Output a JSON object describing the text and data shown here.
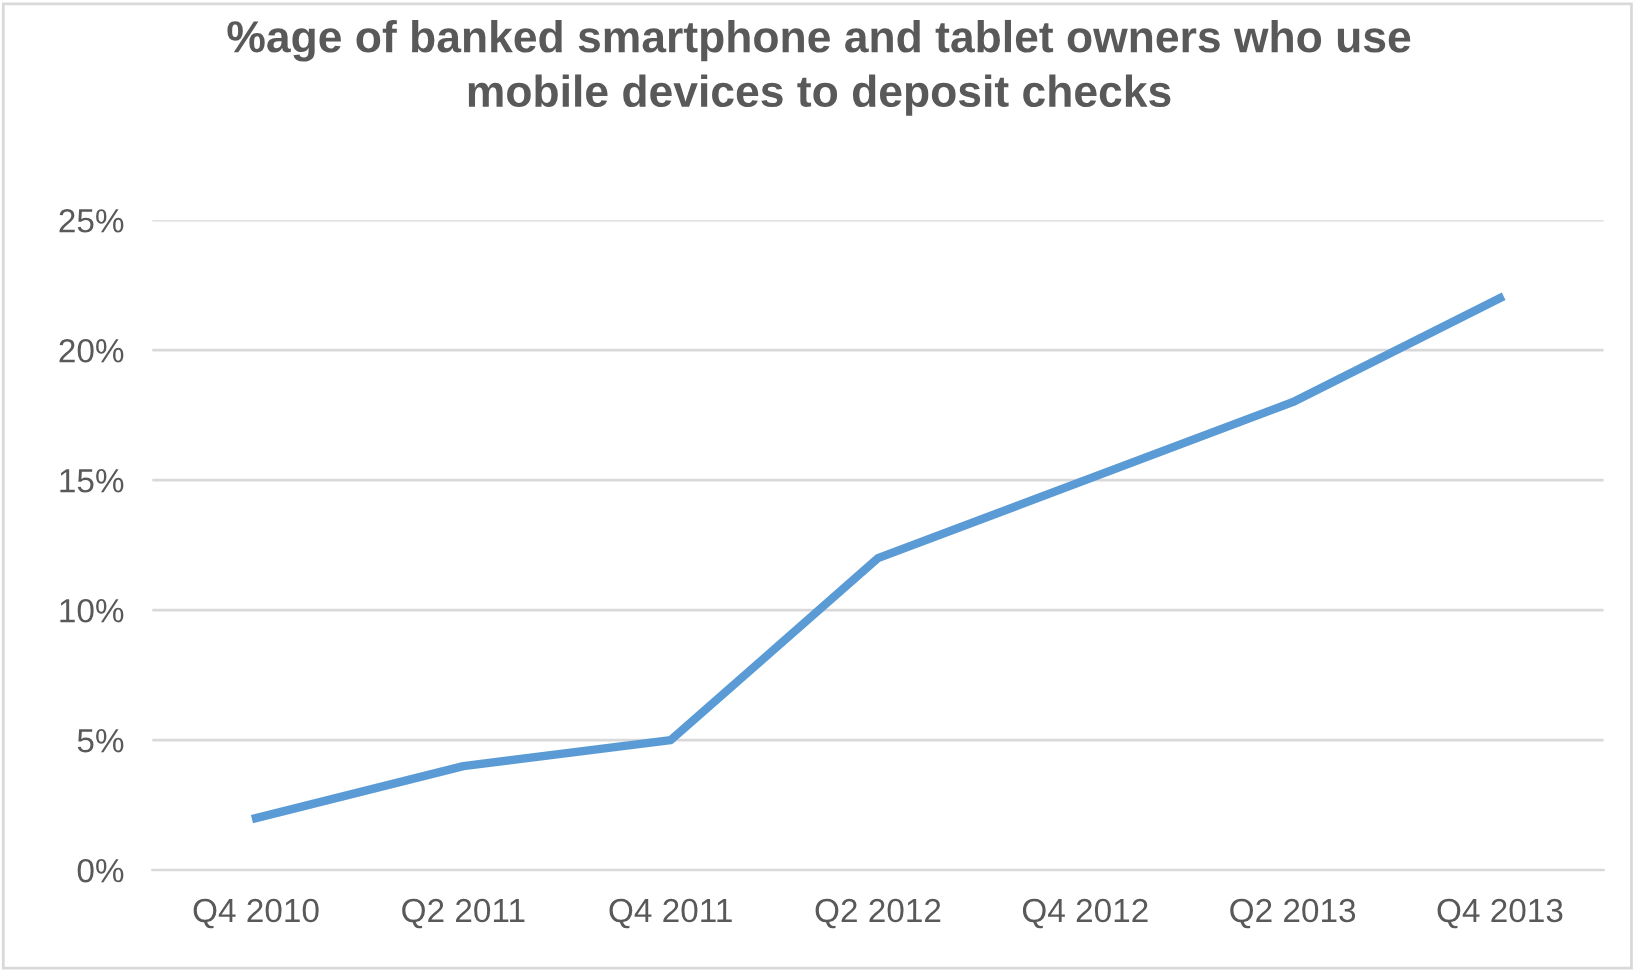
{
  "chart_data": {
    "type": "line",
    "title": "%age of banked smartphone and tablet owners who use\nmobile devices to deposit checks",
    "categories": [
      "Q4 2010",
      "Q2 2011",
      "Q4 2011",
      "Q2 2012",
      "Q4 2012",
      "Q2 2013",
      "Q4 2013"
    ],
    "series": [
      {
        "color": "#5b9bd5",
        "values": [
          2,
          4,
          5,
          12,
          15,
          18,
          22
        ]
      }
    ],
    "ylim": [
      0,
      25
    ],
    "yticks": [
      {
        "value": 0,
        "label": "0%"
      },
      {
        "value": 5,
        "label": "5%"
      },
      {
        "value": 10,
        "label": "10%"
      },
      {
        "value": 15,
        "label": "15%"
      },
      {
        "value": 20,
        "label": "20%"
      },
      {
        "value": 25,
        "label": "25%"
      }
    ],
    "grid": "y",
    "legend": false,
    "marker": "none",
    "line_style": "solid"
  }
}
